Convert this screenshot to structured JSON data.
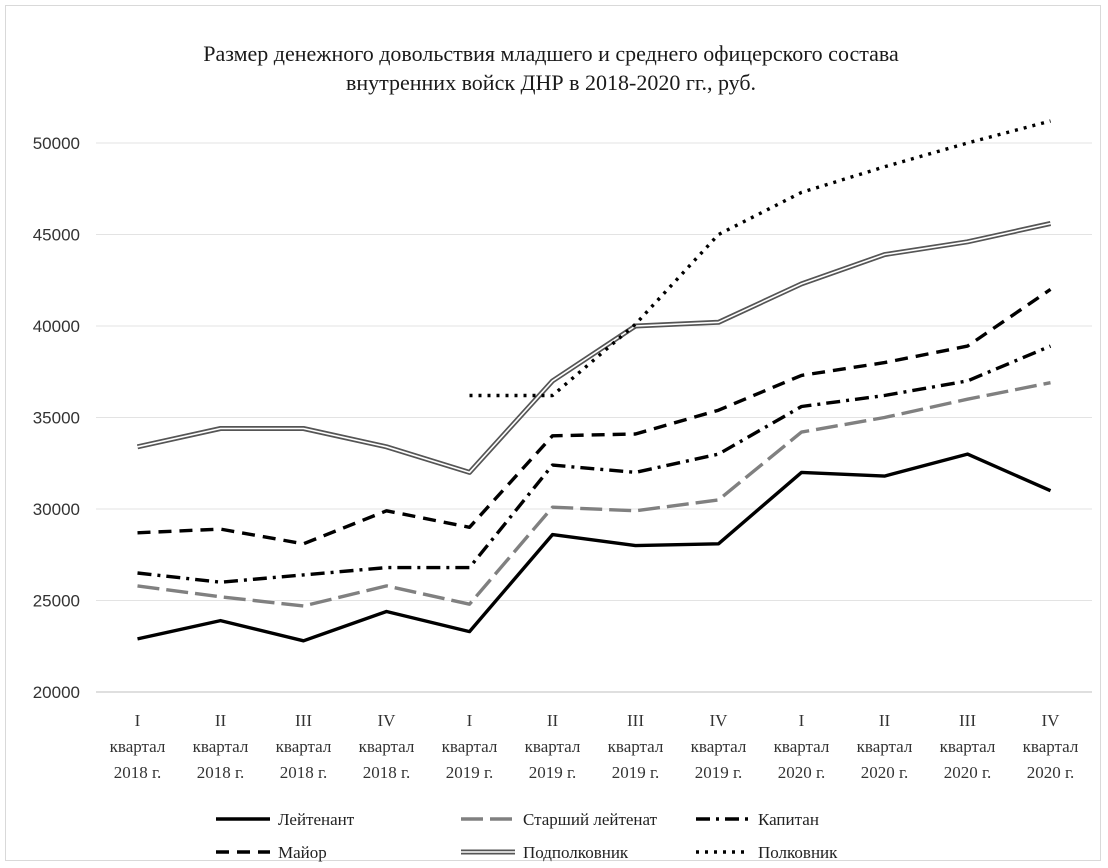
{
  "chart_data": {
    "type": "line",
    "title_lines": [
      "Размер денежного довольствия младшего и среднего офицерского состава",
      "внутренних войск ДНР в 2018-2020  гг., руб."
    ],
    "xlabel": "",
    "ylabel": "",
    "ylim": [
      20000,
      50000
    ],
    "yticks": [
      "20000",
      "25000",
      "30000",
      "35000",
      "40000",
      "45000",
      "50000"
    ],
    "grid": "horizontal",
    "legend_position": "bottom",
    "categories": [
      [
        "I",
        "квартал",
        "2018 г."
      ],
      [
        "II",
        "квартал",
        "2018 г."
      ],
      [
        "III",
        "квартал",
        "2018 г."
      ],
      [
        "IV",
        "квартал",
        "2018 г."
      ],
      [
        "I",
        "квартал",
        "2019 г."
      ],
      [
        "II",
        "квартал",
        "2019 г."
      ],
      [
        "III",
        "квартал",
        "2019 г."
      ],
      [
        "IV",
        "квартал",
        "2019 г."
      ],
      [
        "I",
        "квартал",
        "2020 г."
      ],
      [
        "II",
        "квартал",
        "2020 г."
      ],
      [
        "III",
        "квартал",
        "2020 г."
      ],
      [
        "IV",
        "квартал",
        "2020 г."
      ]
    ],
    "series": [
      {
        "name": "Лейтенант",
        "style": "solid",
        "color": "#000000",
        "values": [
          22900,
          23900,
          22800,
          24400,
          23300,
          28600,
          28000,
          28100,
          32000,
          31800,
          33000,
          31000
        ]
      },
      {
        "name": "Старший лейтенат",
        "style": "long-dash",
        "color": "#808080",
        "values": [
          25800,
          25200,
          24700,
          25800,
          24800,
          30100,
          29900,
          30500,
          34200,
          35000,
          36000,
          36900
        ]
      },
      {
        "name": "Капитан",
        "style": "dash-dot",
        "color": "#000000",
        "values": [
          26500,
          26000,
          26400,
          26800,
          26800,
          32400,
          32000,
          33000,
          35600,
          36200,
          37000,
          38900
        ]
      },
      {
        "name": "Майор",
        "style": "dash",
        "color": "#000000",
        "values": [
          28700,
          28900,
          28100,
          29900,
          29000,
          34000,
          34100,
          35400,
          37300,
          38000,
          38900,
          42000
        ]
      },
      {
        "name": "Подполковник",
        "style": "double",
        "color": "#000000",
        "values": [
          33400,
          34400,
          34400,
          33400,
          32000,
          37000,
          40000,
          40200,
          42300,
          43900,
          44600,
          45600
        ]
      },
      {
        "name": "Полковник",
        "style": "dotted",
        "color": "#000000",
        "values": [
          null,
          null,
          null,
          null,
          36200,
          36200,
          40100,
          45000,
          47300,
          48700,
          50000,
          51200
        ]
      }
    ]
  }
}
